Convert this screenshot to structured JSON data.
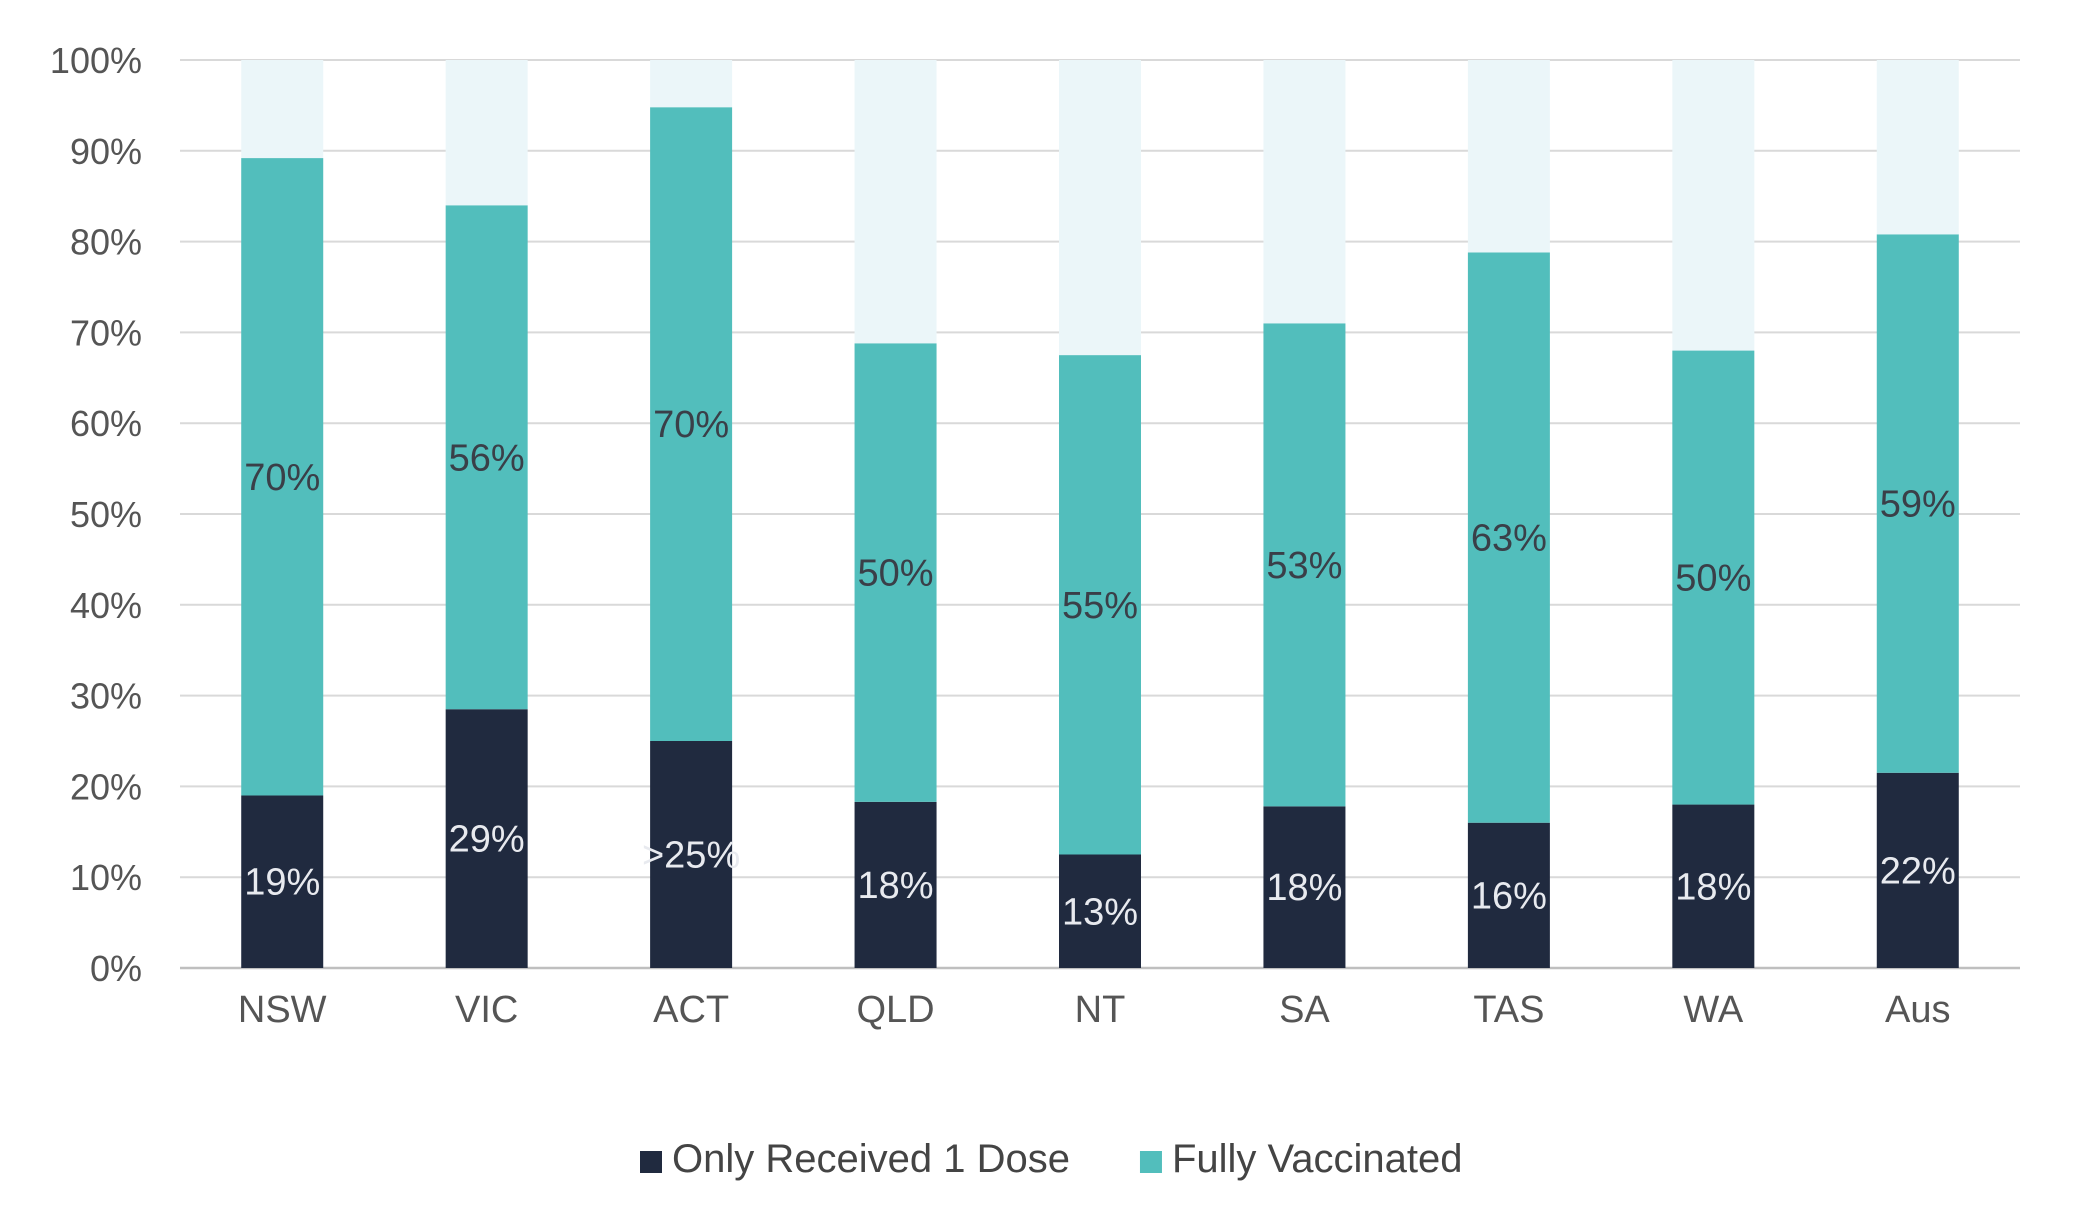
{
  "chart_data": {
    "type": "bar",
    "stacked": true,
    "title": "",
    "xlabel": "",
    "ylabel": "",
    "ylim": [
      0,
      100
    ],
    "y_ticks": [
      "0%",
      "10%",
      "20%",
      "30%",
      "40%",
      "50%",
      "60%",
      "70%",
      "80%",
      "90%",
      "100%"
    ],
    "grid": true,
    "legend_position": "bottom",
    "categories": [
      "NSW",
      "VIC",
      "ACT",
      "QLD",
      "NT",
      "SA",
      "TAS",
      "WA",
      "Aus"
    ],
    "series": [
      {
        "name": "Only Received 1 Dose",
        "color": "#202a3f",
        "label_color": "#e8eaef",
        "values": [
          19,
          28.5,
          25,
          18.3,
          12.5,
          17.8,
          16,
          18,
          21.5
        ],
        "labels": [
          "19%",
          "29%",
          ">25%",
          "18%",
          "13%",
          "18%",
          "16%",
          "18%",
          "22%"
        ]
      },
      {
        "name": "Fully Vaccinated",
        "color": "#52bebc",
        "label_color": "#3a3f48",
        "values": [
          70.2,
          55.5,
          69.8,
          50.5,
          55,
          53.2,
          62.8,
          50,
          59.3
        ],
        "labels": [
          "70%",
          "56%",
          "70%",
          "50%",
          "55%",
          "53%",
          "63%",
          "50%",
          "59%"
        ]
      },
      {
        "name": "Remainder",
        "color": "#ebf6f9",
        "in_legend": false,
        "values": [
          10.8,
          16,
          5.2,
          31.2,
          32.5,
          29,
          21.2,
          32,
          19.2
        ]
      }
    ]
  }
}
